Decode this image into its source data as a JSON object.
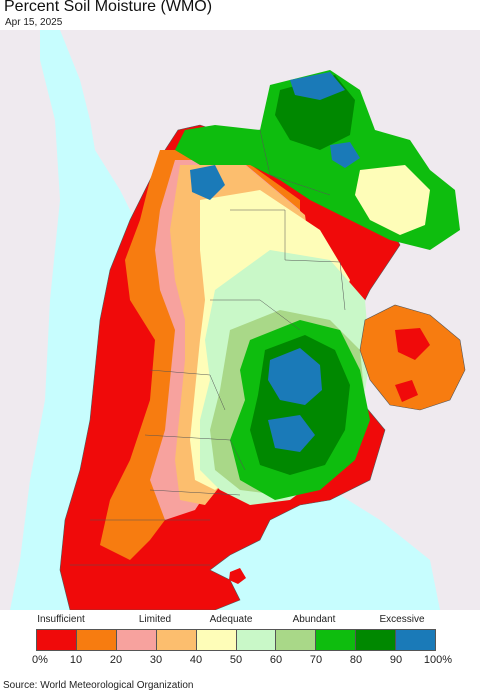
{
  "header": {
    "title": "Percent Soil Moisture (WMO)",
    "date": "Apr 15, 2025"
  },
  "map": {
    "ocean_color": "#c7fdfe",
    "foreign_land_color": "#efeaef",
    "border_color": "#555555"
  },
  "legend": {
    "categories": [
      "Insufficient",
      "Limited",
      "Adequate",
      "Abundant",
      "Excessive"
    ],
    "colors": [
      "#f00a0a",
      "#f77c10",
      "#f7a29e",
      "#fcbe6e",
      "#fefdb8",
      "#c9f8c8",
      "#a9d888",
      "#0ebd0e",
      "#008800",
      "#1a7ab8"
    ],
    "tick_labels": [
      "0%",
      "10",
      "20",
      "30",
      "40",
      "50",
      "60",
      "70",
      "80",
      "90",
      "100%"
    ]
  },
  "footer": {
    "source": "Source: World Meteorological Organization"
  }
}
